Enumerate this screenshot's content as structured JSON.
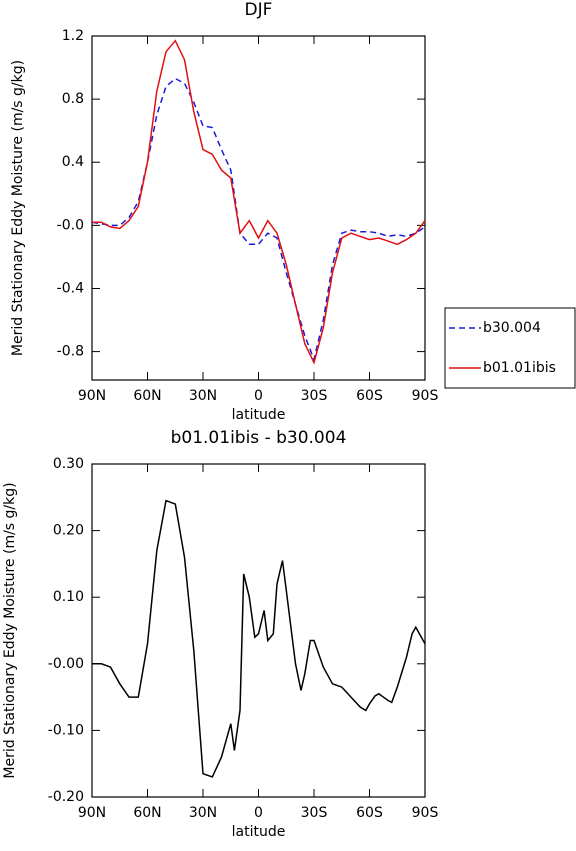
{
  "chart_data": [
    {
      "type": "line",
      "title": "DJF",
      "x_label": "latitude",
      "y_label": "Merid Stationary Eddy Moisture (m/s g/kg)",
      "x": [
        90,
        85,
        80,
        75,
        70,
        65,
        60,
        55,
        50,
        45,
        40,
        35,
        30,
        25,
        20,
        15,
        10,
        5,
        0,
        -5,
        -10,
        -15,
        -20,
        -25,
        -30,
        -35,
        -40,
        -45,
        -50,
        -55,
        -60,
        -65,
        -70,
        -75,
        -80,
        -85,
        -90
      ],
      "xlim": [
        90,
        -90
      ],
      "xticks": [
        {
          "value": 90,
          "label": "90N"
        },
        {
          "value": 60,
          "label": "60N"
        },
        {
          "value": 30,
          "label": "30N"
        },
        0,
        {
          "value": -30,
          "label": "30S"
        },
        {
          "value": -60,
          "label": "60S"
        },
        {
          "value": -90,
          "label": "90S"
        }
      ],
      "ylim": [
        -0.98,
        1.2
      ],
      "yticks": [
        {
          "value": -0.8,
          "label": "-0.8"
        },
        {
          "value": -0.4,
          "label": "-0.4"
        },
        {
          "value": 0,
          "label": "-0.0"
        },
        0.4,
        0.8,
        1.2
      ],
      "legend": "right",
      "series": [
        {
          "name": "b30.004",
          "color": "#1a1adb",
          "line_style": "dashed",
          "values": [
            0.02,
            0.01,
            0.0,
            0.0,
            0.05,
            0.15,
            0.4,
            0.7,
            0.88,
            0.93,
            0.9,
            0.78,
            0.63,
            0.62,
            0.48,
            0.35,
            -0.05,
            -0.12,
            -0.12,
            -0.05,
            -0.08,
            -0.3,
            -0.5,
            -0.7,
            -0.85,
            -0.6,
            -0.25,
            -0.05,
            -0.03,
            -0.04,
            -0.04,
            -0.05,
            -0.07,
            -0.06,
            -0.07,
            -0.05,
            -0.01
          ]
        },
        {
          "name": "b01.01ibis",
          "color": "#e01010",
          "line_style": "solid",
          "values": [
            0.02,
            0.02,
            -0.01,
            -0.02,
            0.03,
            0.12,
            0.4,
            0.85,
            1.1,
            1.17,
            1.05,
            0.72,
            0.48,
            0.45,
            0.35,
            0.3,
            -0.05,
            0.03,
            -0.08,
            0.03,
            -0.05,
            -0.25,
            -0.5,
            -0.75,
            -0.87,
            -0.65,
            -0.3,
            -0.08,
            -0.05,
            -0.07,
            -0.09,
            -0.08,
            -0.1,
            -0.12,
            -0.09,
            -0.05,
            0.03
          ]
        }
      ]
    },
    {
      "type": "line",
      "title": "b01.01ibis - b30.004",
      "x_label": "latitude",
      "y_label": "Merid Stationary Eddy Moisture (m/s g/kg)",
      "x": [
        90,
        85,
        80,
        75,
        70,
        65,
        60,
        55,
        50,
        45,
        40,
        35,
        30,
        25,
        20,
        15,
        13,
        10,
        8,
        5,
        2,
        0,
        -3,
        -5,
        -8,
        -10,
        -13,
        -15,
        -20,
        -23,
        -25,
        -28,
        -30,
        -35,
        -40,
        -45,
        -50,
        -55,
        -58,
        -60,
        -63,
        -65,
        -70,
        -72,
        -75,
        -80,
        -83,
        -85,
        -90
      ],
      "xlim": [
        90,
        -90
      ],
      "xticks": [
        {
          "value": 90,
          "label": "90N"
        },
        {
          "value": 60,
          "label": "60N"
        },
        {
          "value": 30,
          "label": "30N"
        },
        0,
        {
          "value": -30,
          "label": "30S"
        },
        {
          "value": -60,
          "label": "60S"
        },
        {
          "value": -90,
          "label": "90S"
        }
      ],
      "ylim": [
        -0.2,
        0.3
      ],
      "yticks": [
        {
          "value": -0.2,
          "label": "-0.20"
        },
        {
          "value": -0.1,
          "label": "-0.10"
        },
        {
          "value": 0,
          "label": "-0.00"
        },
        {
          "value": 0.1,
          "label": "0.10"
        },
        {
          "value": 0.2,
          "label": "0.20"
        },
        {
          "value": 0.3,
          "label": "0.30"
        }
      ],
      "color": "#000000",
      "values": [
        0.0,
        0.0,
        -0.005,
        -0.03,
        -0.05,
        -0.05,
        0.03,
        0.17,
        0.245,
        0.24,
        0.16,
        0.02,
        -0.165,
        -0.17,
        -0.14,
        -0.09,
        -0.13,
        -0.07,
        0.135,
        0.1,
        0.04,
        0.045,
        0.08,
        0.035,
        0.045,
        0.12,
        0.155,
        0.11,
        0.0,
        -0.04,
        -0.015,
        0.035,
        0.035,
        -0.005,
        -0.03,
        -0.035,
        -0.05,
        -0.065,
        -0.07,
        -0.06,
        -0.048,
        -0.045,
        -0.055,
        -0.058,
        -0.035,
        0.01,
        0.045,
        0.055,
        0.03
      ]
    }
  ]
}
